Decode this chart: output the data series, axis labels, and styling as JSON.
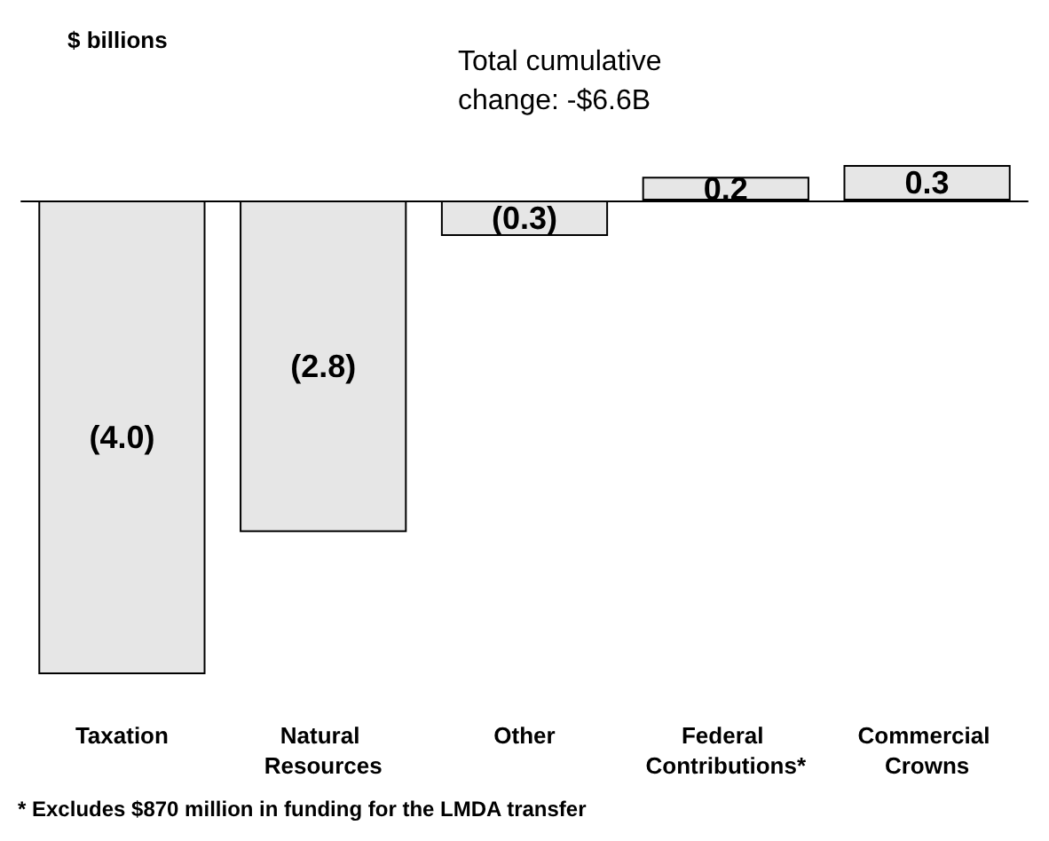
{
  "chart_data": {
    "type": "bar",
    "ylabel": "$ billions",
    "annotations": [
      "Total cumulative change: -$6.6B",
      "* Excludes $870 million in funding for the LMDA transfer"
    ],
    "categories": [
      "Taxation",
      "Natural Resources",
      "Other",
      "Federal Contributions*",
      "Commercial Crowns"
    ],
    "values": [
      -4.0,
      -2.8,
      -0.3,
      0.2,
      0.3
    ],
    "value_labels": [
      "(4.0)",
      "(2.8)",
      "(0.3)",
      "0.2",
      "0.3"
    ],
    "color": "#e6e6e6"
  }
}
